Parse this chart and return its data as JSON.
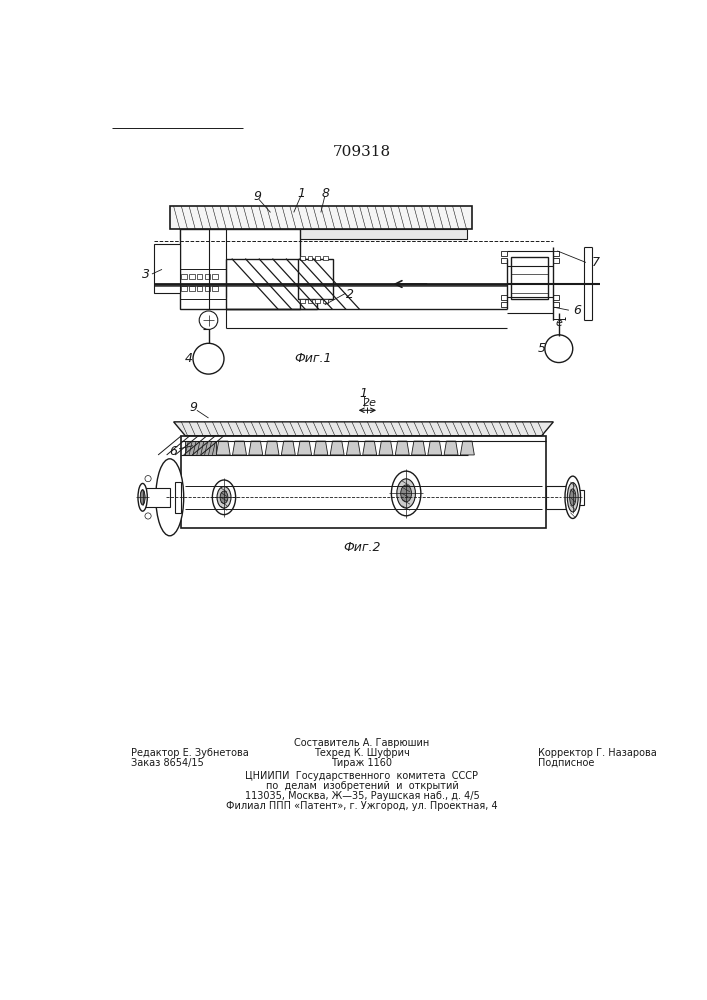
{
  "title_number": "709318",
  "fig1_caption": "Фиг.1",
  "fig2_caption": "Фиг.2",
  "footer_line1_left": "Редактор Е. Зубнетова",
  "footer_line2_left": "Заказ 8654/15",
  "footer_line1_center": "Составитель А. Гаврюшин",
  "footer_line2_center": "Техред К. Шуфрич",
  "footer_line3_center": "Тираж 1160",
  "footer_line2_right": "Корректор Г. Назарова",
  "footer_line3_right": "Подписное",
  "footer_org1": "ЦНИИПИ  Государственного  комитета  СССР",
  "footer_org2": "по  делам  изобретений  и  открытий",
  "footer_org3": "113035, Москва, Ж—35, Раушская наб., д. 4/5",
  "footer_org4": "Филиал ППП «Патент», г. Ужгород, ул. Проектная, 4",
  "bg_color": "#ffffff",
  "line_color": "#1a1a1a"
}
